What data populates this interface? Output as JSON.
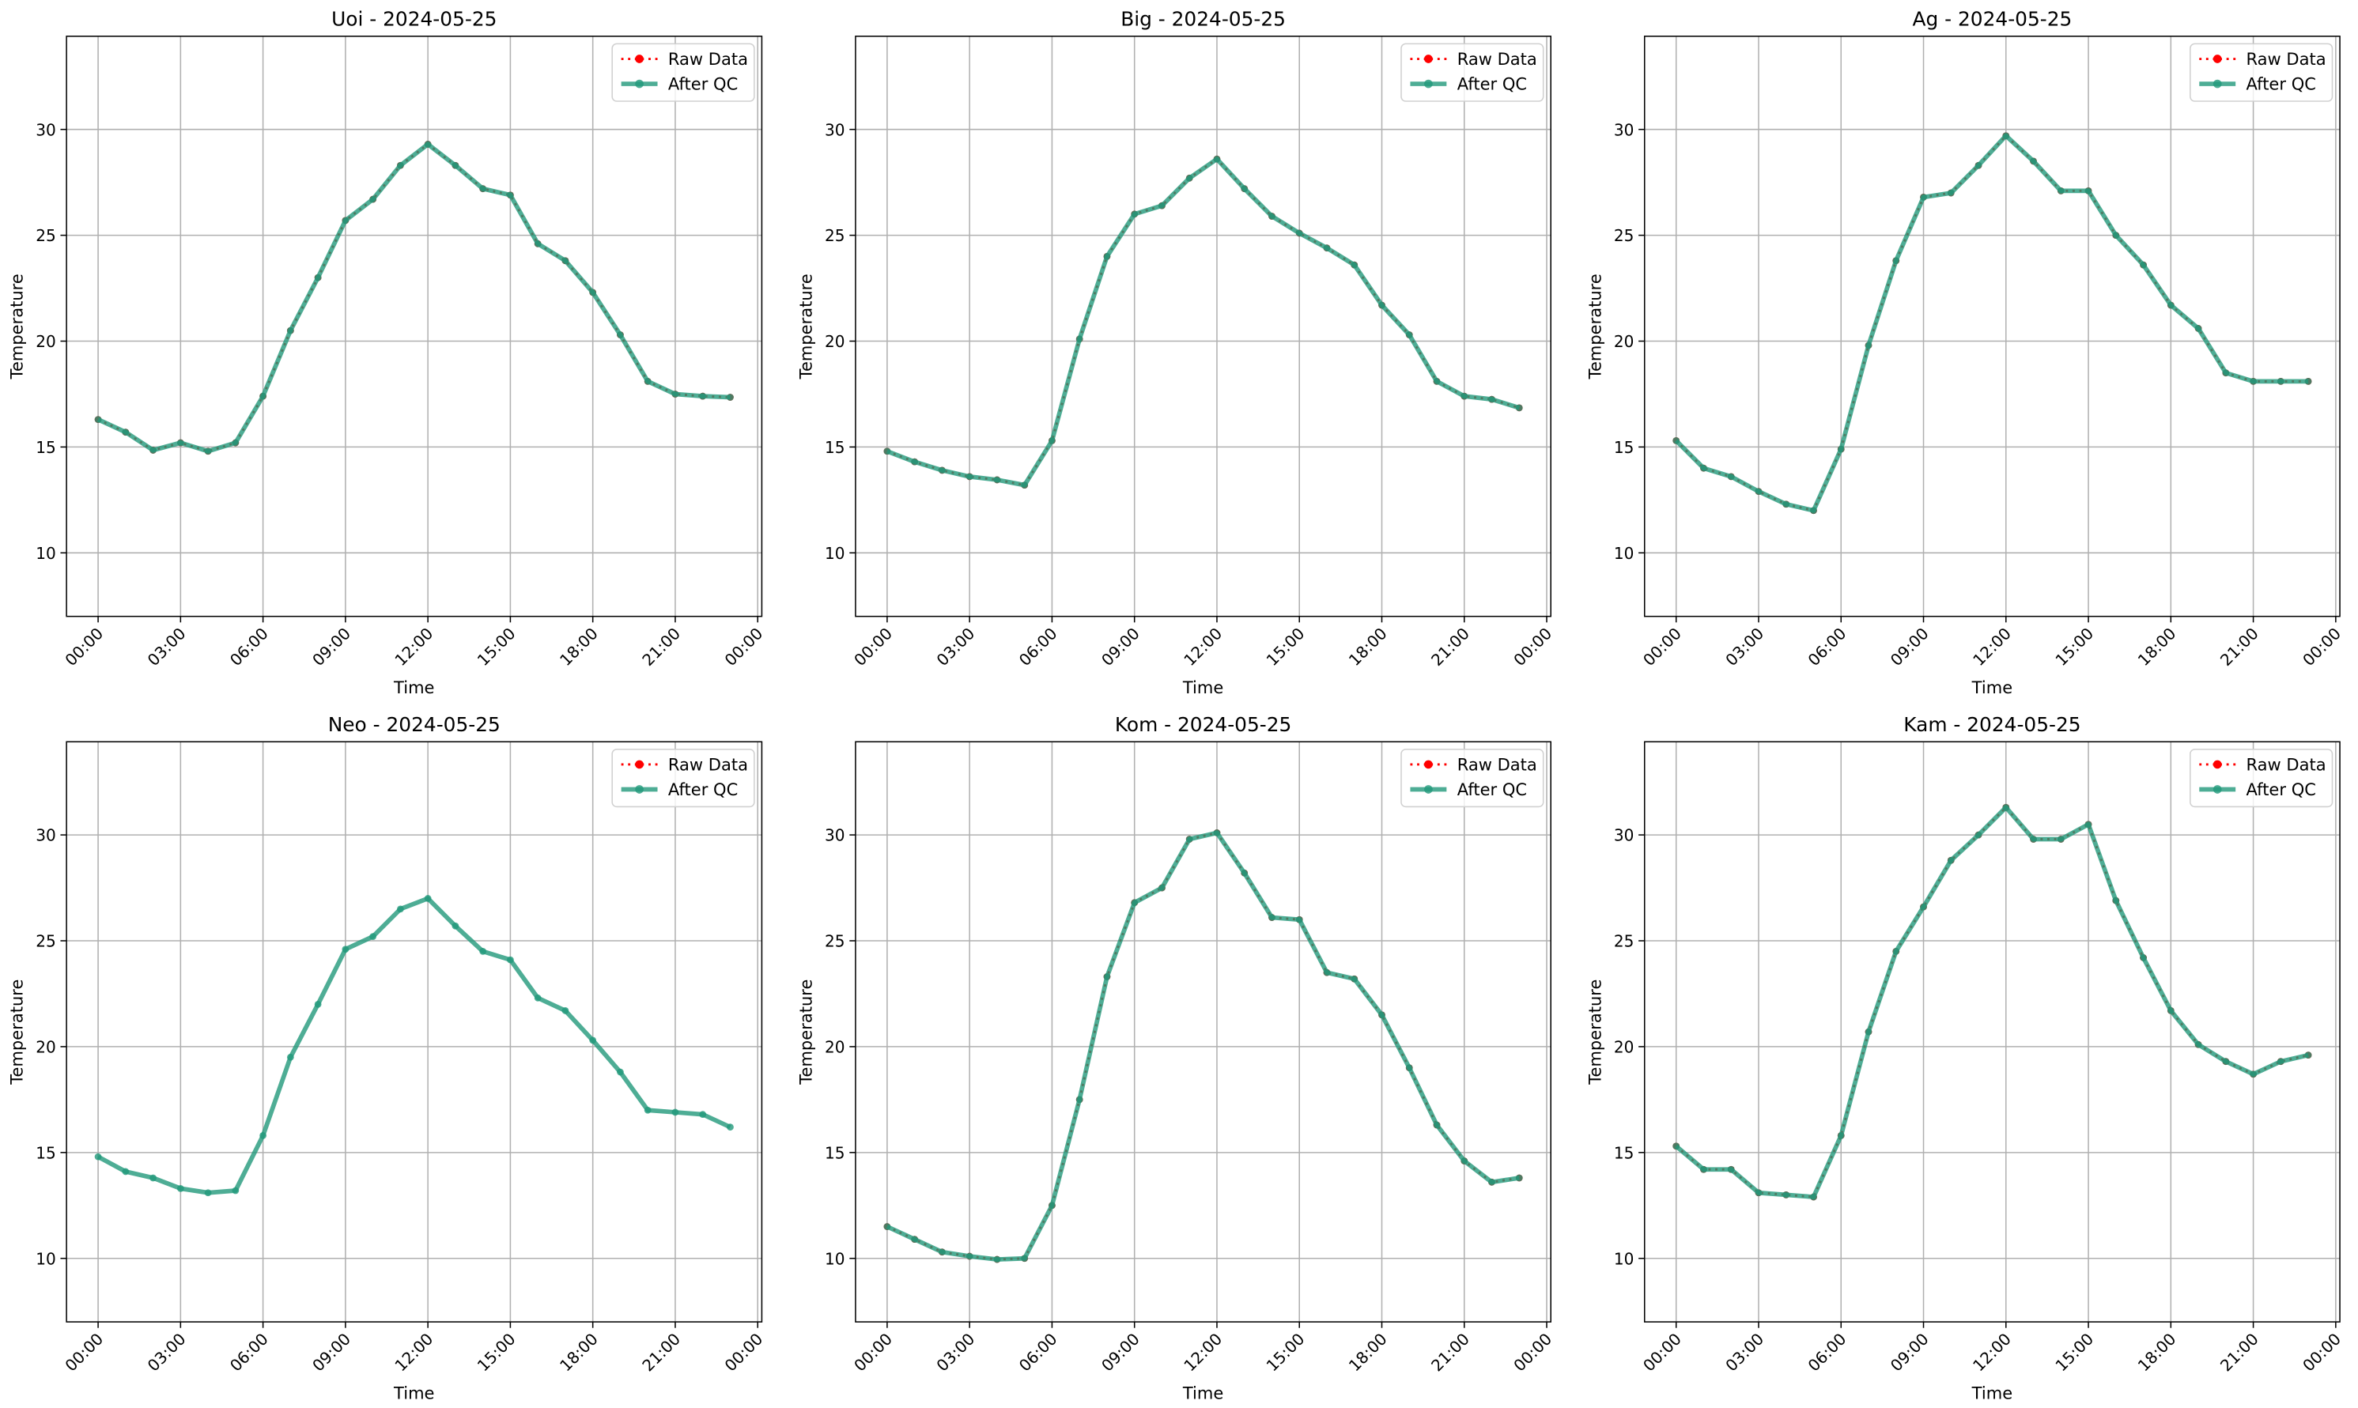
{
  "chart_data": [
    {
      "type": "line",
      "title": "Uoi - 2024-05-25",
      "xlabel": "Time",
      "ylabel": "Temperature",
      "x": [
        0,
        1,
        2,
        3,
        4,
        5,
        6,
        7,
        8,
        9,
        10,
        11,
        12,
        13,
        14,
        15,
        16,
        17,
        18,
        19,
        20,
        21,
        22,
        23
      ],
      "series": [
        {
          "name": "Raw Data",
          "color": "#ff0000",
          "values": [
            16.3,
            15.7,
            14.85,
            15.2,
            14.8,
            15.2,
            17.4,
            20.5,
            23,
            25.7,
            26.7,
            28.3,
            29.3,
            28.3,
            27.2,
            26.9,
            24.6,
            23.8,
            22.3,
            20.3,
            18.1,
            17.5,
            17.4,
            17.35
          ]
        },
        {
          "name": "After QC",
          "color": "#22997a",
          "values": [
            16.3,
            15.7,
            14.85,
            15.2,
            14.8,
            15.2,
            17.4,
            20.5,
            23,
            25.7,
            26.7,
            28.3,
            29.3,
            28.3,
            27.2,
            26.9,
            24.6,
            23.8,
            22.3,
            20.3,
            18.1,
            17.5,
            17.4,
            17.35
          ]
        }
      ],
      "xlim": [
        -1.15,
        24.15
      ],
      "ylim": [
        7,
        34.4
      ],
      "xticks": [
        {
          "value": 0,
          "label": "00:00"
        },
        {
          "value": 3,
          "label": "03:00"
        },
        {
          "value": 6,
          "label": "06:00"
        },
        {
          "value": 9,
          "label": "09:00"
        },
        {
          "value": 12,
          "label": "12:00"
        },
        {
          "value": 15,
          "label": "15:00"
        },
        {
          "value": 18,
          "label": "18:00"
        },
        {
          "value": 21,
          "label": "21:00"
        },
        {
          "value": 24,
          "label": "00:00"
        }
      ],
      "yticks": [
        10,
        15,
        20,
        25,
        30
      ],
      "grid": true,
      "legend": "upper right"
    },
    {
      "type": "line",
      "title": "Big - 2024-05-25",
      "xlabel": "Time",
      "ylabel": "Temperature",
      "x": [
        0,
        1,
        2,
        3,
        4,
        5,
        6,
        7,
        8,
        9,
        10,
        11,
        12,
        13,
        14,
        15,
        16,
        17,
        18,
        19,
        20,
        21,
        22,
        23
      ],
      "series": [
        {
          "name": "Raw Data",
          "color": "#ff0000",
          "values": [
            14.8,
            14.3,
            13.9,
            13.6,
            13.45,
            13.2,
            15.3,
            20.1,
            24,
            26,
            26.4,
            27.7,
            28.6,
            27.2,
            25.9,
            25.1,
            24.4,
            23.6,
            21.7,
            20.3,
            18.1,
            17.4,
            17.25,
            16.85
          ]
        },
        {
          "name": "After QC",
          "color": "#22997a",
          "values": [
            14.8,
            14.3,
            13.9,
            13.6,
            13.45,
            13.2,
            15.3,
            20.1,
            24,
            26,
            26.4,
            27.7,
            28.6,
            27.2,
            25.9,
            25.1,
            24.4,
            23.6,
            21.7,
            20.3,
            18.1,
            17.4,
            17.25,
            16.85
          ]
        }
      ],
      "xlim": [
        -1.15,
        24.15
      ],
      "ylim": [
        7,
        34.4
      ],
      "xticks": [
        {
          "value": 0,
          "label": "00:00"
        },
        {
          "value": 3,
          "label": "03:00"
        },
        {
          "value": 6,
          "label": "06:00"
        },
        {
          "value": 9,
          "label": "09:00"
        },
        {
          "value": 12,
          "label": "12:00"
        },
        {
          "value": 15,
          "label": "15:00"
        },
        {
          "value": 18,
          "label": "18:00"
        },
        {
          "value": 21,
          "label": "21:00"
        },
        {
          "value": 24,
          "label": "00:00"
        }
      ],
      "yticks": [
        10,
        15,
        20,
        25,
        30
      ],
      "grid": true,
      "legend": "upper right"
    },
    {
      "type": "line",
      "title": "Ag - 2024-05-25",
      "xlabel": "Time",
      "ylabel": "Temperature",
      "x": [
        0,
        1,
        2,
        3,
        4,
        5,
        6,
        7,
        8,
        9,
        10,
        11,
        12,
        13,
        14,
        15,
        16,
        17,
        18,
        19,
        20,
        21,
        22,
        23
      ],
      "series": [
        {
          "name": "Raw Data",
          "color": "#ff0000",
          "values": [
            15.3,
            14,
            13.6,
            12.9,
            12.3,
            12,
            14.9,
            19.8,
            23.8,
            26.8,
            27,
            28.3,
            29.7,
            28.5,
            27.1,
            27.1,
            25,
            23.6,
            21.7,
            20.6,
            18.5,
            18.1,
            18.1,
            18.1
          ]
        },
        {
          "name": "After QC",
          "color": "#22997a",
          "values": [
            15.3,
            14,
            13.6,
            12.9,
            12.3,
            12,
            14.9,
            19.8,
            23.8,
            26.8,
            27,
            28.3,
            29.7,
            28.5,
            27.1,
            27.1,
            25,
            23.6,
            21.7,
            20.6,
            18.5,
            18.1,
            18.1,
            18.1
          ]
        }
      ],
      "xlim": [
        -1.15,
        24.15
      ],
      "ylim": [
        7,
        34.4
      ],
      "xticks": [
        {
          "value": 0,
          "label": "00:00"
        },
        {
          "value": 3,
          "label": "03:00"
        },
        {
          "value": 6,
          "label": "06:00"
        },
        {
          "value": 9,
          "label": "09:00"
        },
        {
          "value": 12,
          "label": "12:00"
        },
        {
          "value": 15,
          "label": "15:00"
        },
        {
          "value": 18,
          "label": "18:00"
        },
        {
          "value": 21,
          "label": "21:00"
        },
        {
          "value": 24,
          "label": "00:00"
        }
      ],
      "yticks": [
        10,
        15,
        20,
        25,
        30
      ],
      "grid": true,
      "legend": "upper right"
    },
    {
      "type": "line",
      "title": "Neo - 2024-05-25",
      "xlabel": "Time",
      "ylabel": "Temperature",
      "x": [
        0,
        1,
        2,
        3,
        4,
        5,
        6,
        7,
        8,
        9,
        10,
        11,
        12,
        13,
        14,
        15,
        16,
        17,
        18,
        19,
        20,
        21,
        22,
        23
      ],
      "series": [
        {
          "name": "Raw Data",
          "color": "#ff0000",
          "values": [
            null,
            null,
            null,
            null,
            null,
            null,
            null,
            null,
            null,
            null,
            null,
            null,
            null,
            null,
            null,
            null,
            null,
            null,
            null,
            null,
            null,
            null,
            null,
            null
          ]
        },
        {
          "name": "After QC",
          "color": "#22997a",
          "values": [
            14.8,
            14.1,
            13.8,
            13.3,
            13.1,
            13.2,
            15.8,
            19.5,
            22,
            24.6,
            25.2,
            26.5,
            27,
            25.7,
            24.5,
            24.1,
            22.3,
            21.7,
            20.3,
            18.8,
            17,
            16.9,
            16.8,
            16.2
          ]
        }
      ],
      "xlim": [
        -1.15,
        24.15
      ],
      "ylim": [
        7,
        34.4
      ],
      "xticks": [
        {
          "value": 0,
          "label": "00:00"
        },
        {
          "value": 3,
          "label": "03:00"
        },
        {
          "value": 6,
          "label": "06:00"
        },
        {
          "value": 9,
          "label": "09:00"
        },
        {
          "value": 12,
          "label": "12:00"
        },
        {
          "value": 15,
          "label": "15:00"
        },
        {
          "value": 18,
          "label": "18:00"
        },
        {
          "value": 21,
          "label": "21:00"
        },
        {
          "value": 24,
          "label": "00:00"
        }
      ],
      "yticks": [
        10,
        15,
        20,
        25,
        30
      ],
      "grid": true,
      "legend": "upper right"
    },
    {
      "type": "line",
      "title": "Kom - 2024-05-25",
      "xlabel": "Time",
      "ylabel": "Temperature",
      "x": [
        0,
        1,
        2,
        3,
        4,
        5,
        6,
        7,
        8,
        9,
        10,
        11,
        12,
        13,
        14,
        15,
        16,
        17,
        18,
        19,
        20,
        21,
        22,
        23
      ],
      "series": [
        {
          "name": "Raw Data",
          "color": "#ff0000",
          "values": [
            11.5,
            10.9,
            10.3,
            10.1,
            9.95,
            10,
            12.5,
            17.5,
            23.3,
            26.8,
            27.5,
            29.8,
            30.1,
            28.2,
            26.1,
            26,
            23.5,
            23.2,
            21.5,
            19,
            16.3,
            14.6,
            13.6,
            13.8
          ]
        },
        {
          "name": "After QC",
          "color": "#22997a",
          "values": [
            11.5,
            10.9,
            10.3,
            10.1,
            9.95,
            10,
            12.5,
            17.5,
            23.3,
            26.8,
            27.5,
            29.8,
            30.1,
            28.2,
            26.1,
            26,
            23.5,
            23.2,
            21.5,
            19,
            16.3,
            14.6,
            13.6,
            13.8
          ]
        }
      ],
      "xlim": [
        -1.15,
        24.15
      ],
      "ylim": [
        7,
        34.4
      ],
      "xticks": [
        {
          "value": 0,
          "label": "00:00"
        },
        {
          "value": 3,
          "label": "03:00"
        },
        {
          "value": 6,
          "label": "06:00"
        },
        {
          "value": 9,
          "label": "09:00"
        },
        {
          "value": 12,
          "label": "12:00"
        },
        {
          "value": 15,
          "label": "15:00"
        },
        {
          "value": 18,
          "label": "18:00"
        },
        {
          "value": 21,
          "label": "21:00"
        },
        {
          "value": 24,
          "label": "00:00"
        }
      ],
      "yticks": [
        10,
        15,
        20,
        25,
        30
      ],
      "grid": true,
      "legend": "upper right"
    },
    {
      "type": "line",
      "title": "Kam - 2024-05-25",
      "xlabel": "Time",
      "ylabel": "Temperature",
      "x": [
        0,
        1,
        2,
        3,
        4,
        5,
        6,
        7,
        8,
        9,
        10,
        11,
        12,
        13,
        14,
        15,
        16,
        17,
        18,
        19,
        20,
        21,
        22,
        23
      ],
      "series": [
        {
          "name": "Raw Data",
          "color": "#ff0000",
          "values": [
            15.3,
            14.2,
            14.2,
            13.1,
            13,
            12.9,
            15.8,
            20.7,
            24.5,
            26.6,
            28.8,
            30,
            31.3,
            29.8,
            29.8,
            30.5,
            26.9,
            24.2,
            21.7,
            20.1,
            19.3,
            18.7,
            19.3,
            19.6
          ]
        },
        {
          "name": "After QC",
          "color": "#22997a",
          "values": [
            15.3,
            14.2,
            14.2,
            13.1,
            13,
            12.9,
            15.8,
            20.7,
            24.5,
            26.6,
            28.8,
            30,
            31.3,
            29.8,
            29.8,
            30.5,
            26.9,
            24.2,
            21.7,
            20.1,
            19.3,
            18.7,
            19.3,
            19.6
          ]
        }
      ],
      "xlim": [
        -1.15,
        24.15
      ],
      "ylim": [
        7,
        34.4
      ],
      "xticks": [
        {
          "value": 0,
          "label": "00:00"
        },
        {
          "value": 3,
          "label": "03:00"
        },
        {
          "value": 6,
          "label": "06:00"
        },
        {
          "value": 9,
          "label": "09:00"
        },
        {
          "value": 12,
          "label": "12:00"
        },
        {
          "value": 15,
          "label": "15:00"
        },
        {
          "value": 18,
          "label": "18:00"
        },
        {
          "value": 21,
          "label": "21:00"
        },
        {
          "value": 24,
          "label": "00:00"
        }
      ],
      "yticks": [
        10,
        15,
        20,
        25,
        30
      ],
      "grid": true,
      "legend": "upper right"
    }
  ]
}
